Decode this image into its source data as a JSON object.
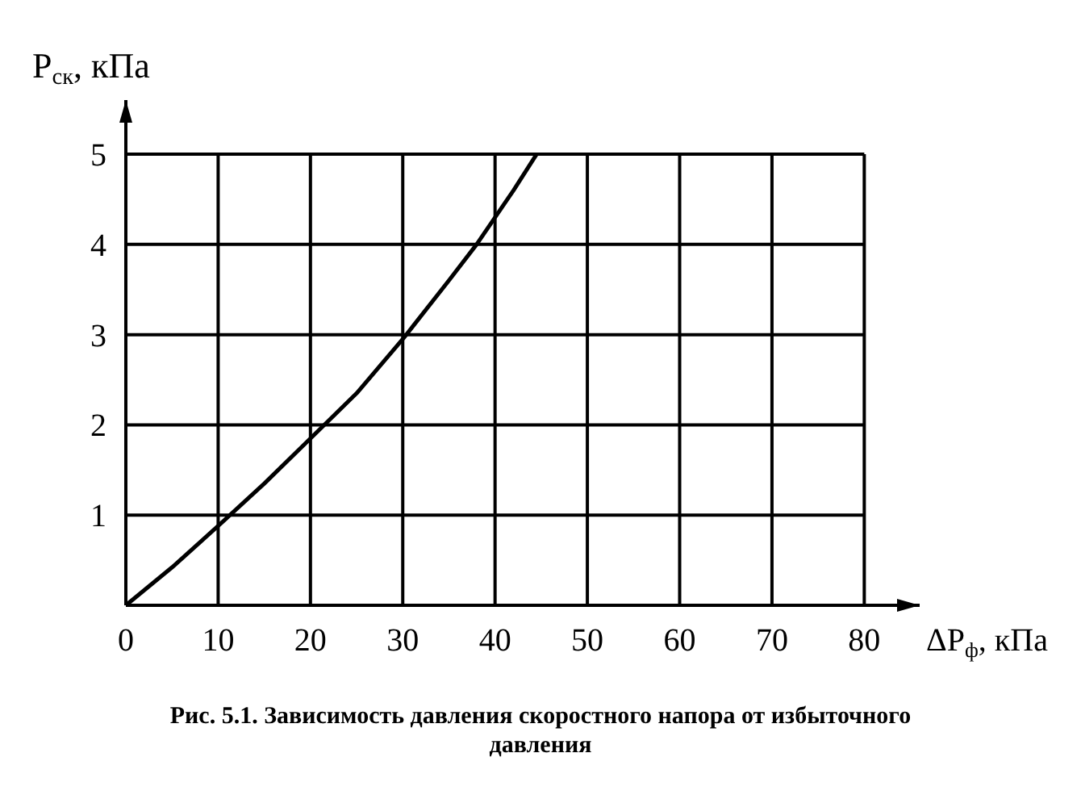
{
  "chart_data": {
    "type": "line",
    "xlabel": "ΔP$_{ф}$, кПа",
    "ylabel": "P$_{ск}$, кПа",
    "x": [
      0,
      5,
      10,
      15,
      20,
      25,
      30,
      35,
      38,
      40,
      42,
      44.5
    ],
    "series": [
      {
        "color": "#000000",
        "values": [
          0,
          0.42,
          0.88,
          1.35,
          1.85,
          2.35,
          2.95,
          3.6,
          4.0,
          4.3,
          4.6,
          5.0
        ]
      }
    ],
    "xlim": [
      0,
      86
    ],
    "ylim": [
      0,
      5.6
    ],
    "xticks": [
      0,
      10,
      20,
      30,
      40,
      50,
      60,
      70,
      80
    ],
    "yticks": [
      {
        "value": 0,
        "label": null
      },
      1,
      2,
      3,
      4,
      5
    ],
    "grid": true,
    "marker": "none",
    "line_style": "solid",
    "annotations": [
      "Рис. 5.1. Зависимость давления скоростного напора от избыточного давления"
    ]
  }
}
